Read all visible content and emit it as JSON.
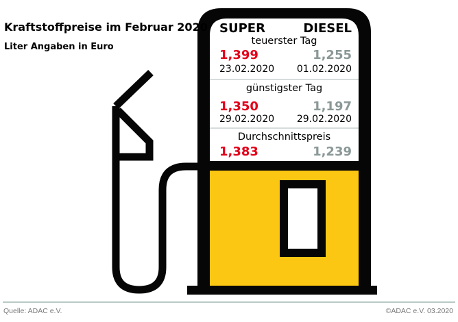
{
  "header": {
    "title": "Kraftstoffpreise im Februar 2020",
    "subtitle": "Liter Angaben in Euro"
  },
  "columns": {
    "left": "SUPER",
    "right": "DIESEL"
  },
  "sections": [
    {
      "label": "teuerster Tag",
      "super_price": "1,399",
      "diesel_price": "1,255",
      "super_date": "23.02.2020",
      "diesel_date": "01.02.2020"
    },
    {
      "label": "günstigster Tag",
      "super_price": "1,350",
      "diesel_price": "1,197",
      "super_date": "29.02.2020",
      "diesel_date": "29.02.2020"
    },
    {
      "label": "Durchschnittspreis",
      "super_price": "1,383",
      "diesel_price": "1,239"
    }
  ],
  "footer": {
    "source": "Quelle: ADAC e.V.",
    "copyright": "©ADAC e.V.  03.2020"
  },
  "colors": {
    "super": "#e2001a",
    "diesel": "#8a9897",
    "pump_yellow": "#fcc712",
    "outline": "#060606"
  },
  "icons": [
    "fuel-pump-icon",
    "fuel-nozzle-icon",
    "fuel-hose-icon"
  ]
}
